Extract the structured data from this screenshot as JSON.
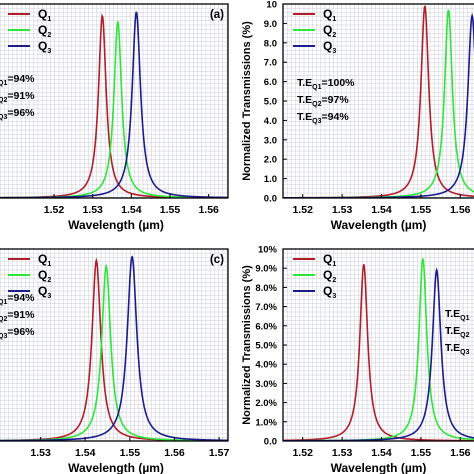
{
  "chart_data": [
    {
      "type": "line",
      "panel_label": "(a)",
      "xlabel": "Wavelength (µm)",
      "ylabel": "",
      "xlim": [
        1.505,
        1.565
      ],
      "ylim": [
        0,
        10
      ],
      "xticks": [
        "1.52",
        "1.53",
        "1.54",
        "1.55",
        "1.56"
      ],
      "xtick_values": [
        1.52,
        1.53,
        1.54,
        1.55,
        1.56
      ],
      "yticks": [],
      "ytick_values": [],
      "grid": true,
      "legend": {
        "placement": "top-left",
        "entries": [
          {
            "base": "Q",
            "sub": "1"
          },
          {
            "base": "Q",
            "sub": "2"
          },
          {
            "base": "Q",
            "sub": "3"
          }
        ]
      },
      "annotations": [
        {
          "base": "",
          "sub": "Q1",
          "suffix": "=94%"
        },
        {
          "base": "",
          "sub": "Q2",
          "suffix": "=91%"
        },
        {
          "base": "",
          "sub": "Q3",
          "suffix": "=96%"
        }
      ],
      "series": [
        {
          "name": "Q1",
          "color": "#b11e2a",
          "peak_x": 1.5325,
          "peak_y": 9.4,
          "fwhm": 0.0024
        },
        {
          "name": "Q2",
          "color": "#2ee63a",
          "peak_x": 1.5365,
          "peak_y": 9.1,
          "fwhm": 0.0024
        },
        {
          "name": "Q3",
          "color": "#1c1c8c",
          "peak_x": 1.5413,
          "peak_y": 9.6,
          "fwhm": 0.0026
        }
      ]
    },
    {
      "type": "line",
      "panel_label": "",
      "xlabel": "Wavelength (µm)",
      "ylabel": "Normalized Transmissions (%)",
      "xlim": [
        1.515,
        1.565
      ],
      "ylim": [
        0,
        10
      ],
      "xticks": [
        "1.52",
        "1.53",
        "1.54",
        "1.55",
        "1.56"
      ],
      "xtick_values": [
        1.52,
        1.53,
        1.54,
        1.55,
        1.56
      ],
      "yticks": [
        "0.0",
        "1.0",
        "2.0",
        "3.0",
        "4.0",
        "5.0",
        "6.0",
        "7.0",
        "8.0",
        "9.0",
        "10"
      ],
      "ytick_values": [
        0,
        1,
        2,
        3,
        4,
        5,
        6,
        7,
        8,
        9,
        10
      ],
      "grid": true,
      "legend": {
        "placement": "top-left",
        "entries": [
          {
            "base": "Q",
            "sub": "1"
          },
          {
            "base": "Q",
            "sub": "2"
          },
          {
            "base": "Q",
            "sub": "3"
          }
        ]
      },
      "annotations": [
        {
          "base": "T.E",
          "sub": "Q1",
          "suffix": "=100%"
        },
        {
          "base": "T.E",
          "sub": "Q2",
          "suffix": "=97%"
        },
        {
          "base": "T.E",
          "sub": "Q3",
          "suffix": "=94%"
        }
      ],
      "series": [
        {
          "name": "Q1",
          "color": "#b11e2a",
          "peak_x": 1.551,
          "peak_y": 9.9,
          "fwhm": 0.0024
        },
        {
          "name": "Q2",
          "color": "#2ee63a",
          "peak_x": 1.557,
          "peak_y": 9.7,
          "fwhm": 0.0024
        },
        {
          "name": "Q3",
          "color": "#1c1c8c",
          "peak_x": 1.563,
          "peak_y": 9.4,
          "fwhm": 0.0026
        }
      ]
    },
    {
      "type": "line",
      "panel_label": "(c)",
      "xlabel": "Wavelength (µm)",
      "ylabel": "",
      "xlim": [
        1.52,
        1.572
      ],
      "ylim": [
        0,
        10
      ],
      "xticks": [
        "1.53",
        "1.54",
        "1.55",
        "1.56",
        "1.57"
      ],
      "xtick_values": [
        1.53,
        1.54,
        1.55,
        1.56,
        1.57
      ],
      "yticks": [],
      "ytick_values": [],
      "grid": true,
      "legend": {
        "placement": "top-left",
        "entries": [
          {
            "base": "Q",
            "sub": "1"
          },
          {
            "base": "Q",
            "sub": "2"
          },
          {
            "base": "Q",
            "sub": "3"
          }
        ]
      },
      "annotations": [
        {
          "base": "",
          "sub": "Q1",
          "suffix": "=94%"
        },
        {
          "base": "",
          "sub": "Q2",
          "suffix": "=91%"
        },
        {
          "base": "",
          "sub": "Q3",
          "suffix": "=96%"
        }
      ],
      "series": [
        {
          "name": "Q1",
          "color": "#b11e2a",
          "peak_x": 1.5425,
          "peak_y": 9.4,
          "fwhm": 0.0024
        },
        {
          "name": "Q2",
          "color": "#2ee63a",
          "peak_x": 1.5447,
          "peak_y": 9.1,
          "fwhm": 0.0024
        },
        {
          "name": "Q3",
          "color": "#1c1c8c",
          "peak_x": 1.5505,
          "peak_y": 9.6,
          "fwhm": 0.0026
        }
      ]
    },
    {
      "type": "line",
      "panel_label": "",
      "xlabel": "Wavelength (µm)",
      "ylabel": "Normalized Transmissions (%)",
      "xlim": [
        1.515,
        1.565
      ],
      "ylim": [
        0,
        10
      ],
      "xticks": [
        "1.52",
        "1.53",
        "1.54",
        "1.55",
        "1.56"
      ],
      "xtick_values": [
        1.52,
        1.53,
        1.54,
        1.55,
        1.56
      ],
      "yticks": [
        "0.0",
        "1.0%",
        "2.0%",
        "3.0%",
        "4.0%",
        "5.0%",
        "6.0%",
        "7.0%",
        "8.0%",
        "9.0%",
        "10%"
      ],
      "ytick_values": [
        0,
        1,
        2,
        3,
        4,
        5,
        6,
        7,
        8,
        9,
        10
      ],
      "grid": true,
      "legend": {
        "placement": "top-left",
        "entries": [
          {
            "base": "Q",
            "sub": "1"
          },
          {
            "base": "Q",
            "sub": "2"
          },
          {
            "base": "Q",
            "sub": "3"
          }
        ]
      },
      "annotations": [
        {
          "base": "T.E",
          "sub": "Q1",
          "suffix": ""
        },
        {
          "base": "T.E",
          "sub": "Q2",
          "suffix": ""
        },
        {
          "base": "T.E",
          "sub": "Q3",
          "suffix": ""
        }
      ],
      "series": [
        {
          "name": "Q1",
          "color": "#b11e2a",
          "peak_x": 1.5355,
          "peak_y": 9.2,
          "fwhm": 0.0024
        },
        {
          "name": "Q2",
          "color": "#2ee63a",
          "peak_x": 1.5505,
          "peak_y": 9.5,
          "fwhm": 0.0024
        },
        {
          "name": "Q3",
          "color": "#1c1c8c",
          "peak_x": 1.554,
          "peak_y": 8.9,
          "fwhm": 0.0026
        }
      ]
    }
  ]
}
